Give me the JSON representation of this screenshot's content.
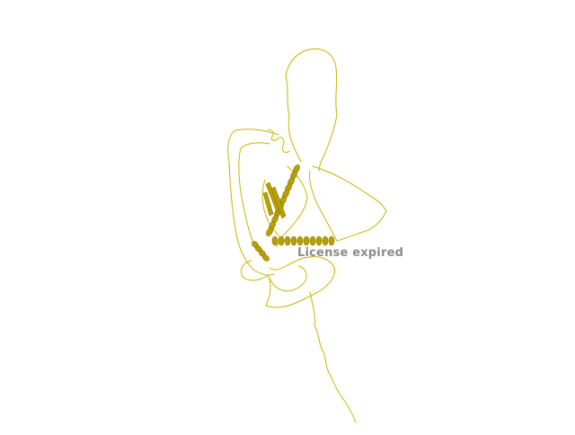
{
  "viewer": {
    "watermark_text": "License expired",
    "structure_color": "#c8b400",
    "helix_color": "#b8a000",
    "background_color": "#ffffff"
  }
}
